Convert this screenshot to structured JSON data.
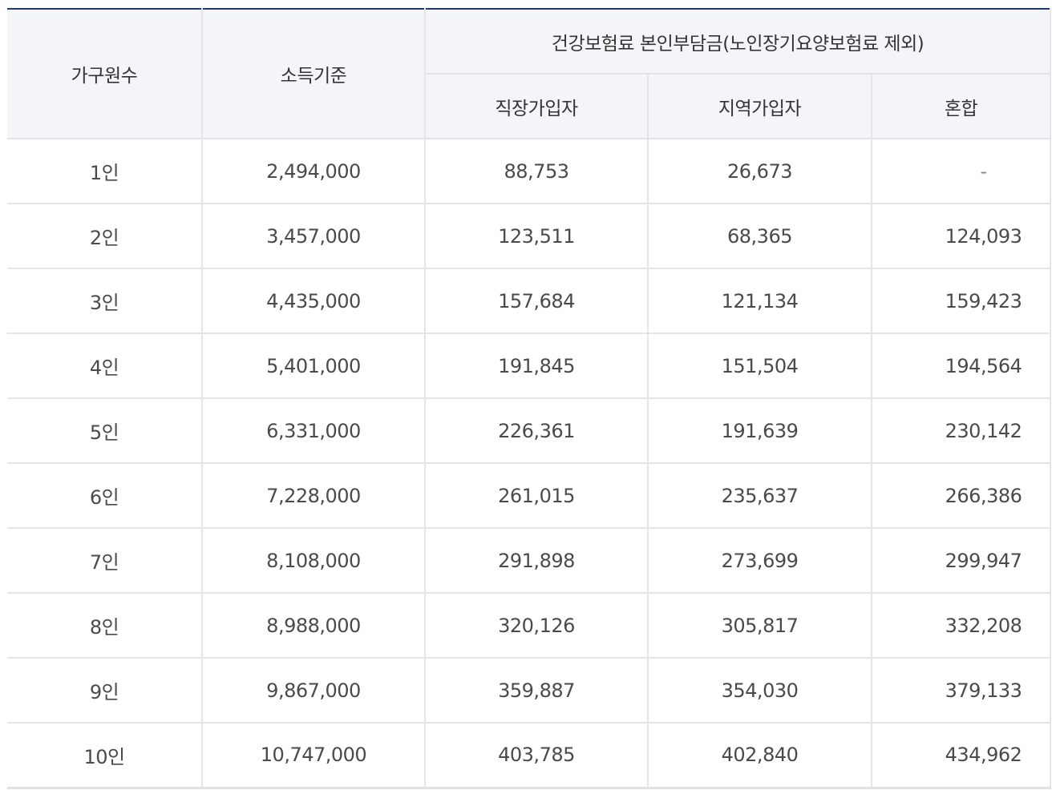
{
  "table": {
    "headers": {
      "household": "가구원수",
      "income": "소득기준",
      "group": "건강보험료 본인부담금(노인장기요양보험료 제외)",
      "employee": "직장가입자",
      "regional": "지역가입자",
      "mixed": "혼합"
    },
    "rows": [
      {
        "household": "1인",
        "income": "2,494,000",
        "employee": "88,753",
        "regional": "26,673",
        "mixed": "-"
      },
      {
        "household": "2인",
        "income": "3,457,000",
        "employee": "123,511",
        "regional": "68,365",
        "mixed": "124,093"
      },
      {
        "household": "3인",
        "income": "4,435,000",
        "employee": "157,684",
        "regional": "121,134",
        "mixed": "159,423"
      },
      {
        "household": "4인",
        "income": "5,401,000",
        "employee": "191,845",
        "regional": "151,504",
        "mixed": "194,564"
      },
      {
        "household": "5인",
        "income": "6,331,000",
        "employee": "226,361",
        "regional": "191,639",
        "mixed": "230,142"
      },
      {
        "household": "6인",
        "income": "7,228,000",
        "employee": "261,015",
        "regional": "235,637",
        "mixed": "266,386"
      },
      {
        "household": "7인",
        "income": "8,108,000",
        "employee": "291,898",
        "regional": "273,699",
        "mixed": "299,947"
      },
      {
        "household": "8인",
        "income": "8,988,000",
        "employee": "320,126",
        "regional": "305,817",
        "mixed": "332,208"
      },
      {
        "household": "9인",
        "income": "9,867,000",
        "employee": "359,887",
        "regional": "354,030",
        "mixed": "379,133"
      },
      {
        "household": "10인",
        "income": "10,747,000",
        "employee": "403,785",
        "regional": "402,840",
        "mixed": "434,962"
      }
    ]
  }
}
